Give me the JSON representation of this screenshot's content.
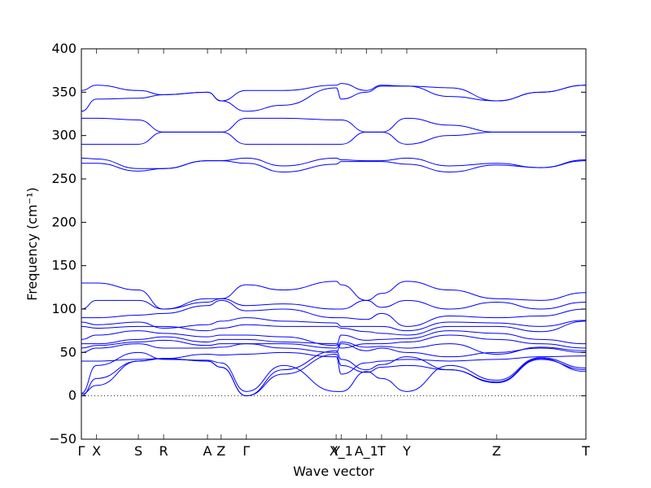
{
  "chart_data": {
    "type": "line",
    "xlabel": "Wave vector",
    "ylabel": "Frequency (cm⁻¹)",
    "ylim": [
      -50,
      400
    ],
    "y_ticks": [
      -50,
      0,
      50,
      100,
      150,
      200,
      250,
      300,
      350,
      400
    ],
    "grid": false,
    "zero_line": true,
    "line_color": "#0000ff",
    "x_ticks": [
      {
        "label": "Γ",
        "x": 0.0
      },
      {
        "label": "X",
        "x": 0.03
      },
      {
        "label": "S",
        "x": 0.113
      },
      {
        "label": "R",
        "x": 0.163
      },
      {
        "label": "A",
        "x": 0.25
      },
      {
        "label": "Z",
        "x": 0.277
      },
      {
        "label": "Γ",
        "x": 0.327
      },
      {
        "label": "Y",
        "x": 0.505
      },
      {
        "label": "X_1",
        "x": 0.515
      },
      {
        "label": "A_1",
        "x": 0.565
      },
      {
        "label": "T",
        "x": 0.595
      },
      {
        "label": "Y",
        "x": 0.645
      },
      {
        "label": "Z",
        "x": 0.823
      },
      {
        "label": "T",
        "x": 1.0
      }
    ],
    "x": [
      0,
      0.03,
      0.113,
      0.163,
      0.25,
      0.277,
      0.327,
      0.4,
      0.505,
      0.515,
      0.565,
      0.595,
      0.645,
      0.73,
      0.823,
      0.91,
      1.0
    ],
    "series": [
      {
        "values": [
          0,
          20,
          40,
          43,
          40,
          33,
          0,
          25,
          48,
          35,
          27,
          33,
          35,
          30,
          15,
          42,
          30
        ]
      },
      {
        "values": [
          2,
          12,
          40,
          43,
          40,
          33,
          0,
          30,
          52,
          42,
          30,
          36,
          45,
          30,
          16,
          43,
          28
        ]
      },
      {
        "values": [
          3,
          35,
          50,
          42,
          41,
          38,
          5,
          35,
          5,
          5,
          28,
          20,
          5,
          35,
          18,
          44,
          32
        ]
      },
      {
        "values": [
          40,
          40,
          42,
          43,
          48,
          47,
          48,
          50,
          45,
          25,
          38,
          40,
          42,
          40,
          42,
          45,
          46
        ]
      },
      {
        "values": [
          50,
          55,
          60,
          55,
          55,
          56,
          60,
          55,
          50,
          60,
          52,
          55,
          50,
          45,
          50,
          55,
          50
        ]
      },
      {
        "values": [
          55,
          58,
          62,
          64,
          58,
          60,
          60,
          60,
          55,
          62,
          56,
          57,
          55,
          60,
          48,
          56,
          52
        ]
      },
      {
        "values": [
          60,
          60,
          65,
          68,
          62,
          65,
          65,
          62,
          60,
          55,
          60,
          60,
          62,
          70,
          65,
          60,
          55
        ]
      },
      {
        "values": [
          65,
          70,
          75,
          72,
          68,
          70,
          70,
          68,
          58,
          70,
          64,
          65,
          66,
          75,
          72,
          65,
          60
        ]
      },
      {
        "values": [
          80,
          78,
          80,
          80,
          75,
          78,
          82,
          80,
          80,
          78,
          74,
          72,
          70,
          80,
          80,
          74,
          86
        ]
      },
      {
        "values": [
          85,
          82,
          85,
          78,
          82,
          86,
          90,
          86,
          84,
          80,
          80,
          80,
          75,
          85,
          84,
          80,
          87
        ]
      },
      {
        "values": [
          90,
          90,
          93,
          95,
          104,
          110,
          98,
          100,
          90,
          90,
          88,
          95,
          80,
          92,
          90,
          92,
          100
        ]
      },
      {
        "values": [
          100,
          110,
          110,
          100,
          108,
          112,
          104,
          106,
          100,
          100,
          110,
          102,
          110,
          100,
          108,
          100,
          108
        ]
      },
      {
        "values": [
          130,
          130,
          122,
          100,
          112,
          112,
          128,
          122,
          132,
          128,
          110,
          118,
          132,
          122,
          112,
          110,
          119
        ]
      },
      {
        "values": [
          268,
          268,
          259,
          262,
          271,
          271,
          268,
          258,
          267,
          270,
          270,
          270,
          267,
          258,
          266,
          263,
          272
        ]
      },
      {
        "values": [
          274,
          273,
          262,
          262,
          271,
          271,
          274,
          265,
          274,
          272,
          271,
          271,
          274,
          265,
          268,
          263,
          271
        ]
      },
      {
        "values": [
          290,
          290,
          290,
          304,
          304,
          304,
          290,
          290,
          290,
          290,
          304,
          304,
          290,
          300,
          304,
          304,
          304
        ]
      },
      {
        "values": [
          320,
          320,
          318,
          304,
          304,
          304,
          320,
          320,
          318,
          318,
          304,
          304,
          320,
          312,
          304,
          304,
          304
        ]
      },
      {
        "values": [
          328,
          342,
          343,
          347,
          350,
          340,
          328,
          335,
          355,
          342,
          350,
          357,
          357,
          345,
          340,
          350,
          358
        ]
      },
      {
        "values": [
          352,
          358,
          352,
          347,
          350,
          340,
          352,
          352,
          358,
          360,
          352,
          358,
          357,
          355,
          340,
          350,
          358
        ]
      }
    ]
  }
}
